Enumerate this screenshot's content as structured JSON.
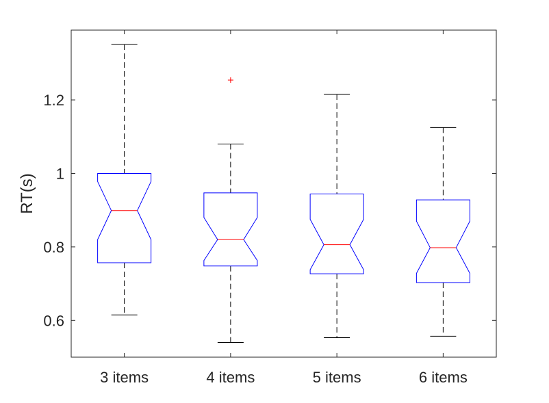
{
  "chart_data": {
    "type": "box",
    "title": "",
    "xlabel": "",
    "ylabel": "RT(s)",
    "ylim": [
      0.5,
      1.39
    ],
    "yticks": [
      0.6,
      0.8,
      1,
      1.2
    ],
    "ytick_labels": [
      "0.6",
      "0.8",
      "1",
      "1.2"
    ],
    "notched": true,
    "grid": false,
    "categories": [
      "3 items",
      "4 items",
      "5 items",
      "6 items"
    ],
    "boxes": [
      {
        "whisker_low": 0.615,
        "q1": 0.757,
        "median": 0.899,
        "q3": 1.0,
        "whisker_high": 1.351,
        "notch_low": 0.82,
        "notch_high": 0.978,
        "outliers": []
      },
      {
        "whisker_low": 0.54,
        "q1": 0.748,
        "median": 0.82,
        "q3": 0.947,
        "whisker_high": 1.08,
        "notch_low": 0.763,
        "notch_high": 0.88,
        "outliers": [
          1.254
        ]
      },
      {
        "whisker_low": 0.553,
        "q1": 0.727,
        "median": 0.806,
        "q3": 0.944,
        "whisker_high": 1.215,
        "notch_low": 0.738,
        "notch_high": 0.875,
        "outliers": []
      },
      {
        "whisker_low": 0.557,
        "q1": 0.703,
        "median": 0.798,
        "q3": 0.928,
        "whisker_high": 1.125,
        "notch_low": 0.728,
        "notch_high": 0.87,
        "outliers": []
      }
    ],
    "colors": {
      "box": "#0000ff",
      "median": "#ff0000",
      "whisker": "#000000",
      "outlier": "#ff0000",
      "axes": "#262626"
    }
  }
}
